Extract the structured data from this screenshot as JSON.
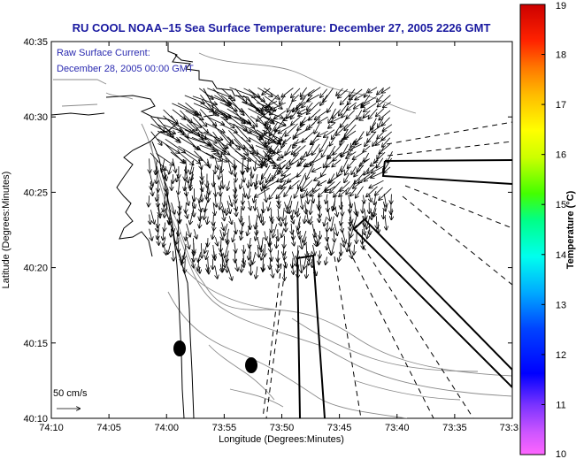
{
  "map": {
    "title": "RU COOL   NOAA–15  Sea Surface Temperature:  December 27, 2005 2226 GMT",
    "annotation_line1": "Raw Surface Current:",
    "annotation_line2": "December 28, 2005 00:00 GMT",
    "scale_label": "50 cm/s",
    "xlabel": "Longitude (Degrees:Minutes)",
    "ylabel": "Latitude (Degrees:Minutes)",
    "x_ticks": [
      "74:10",
      "74:05",
      "74:00",
      "73:55",
      "73:50",
      "73:45",
      "73:40",
      "73:35",
      "73:3"
    ],
    "y_ticks": [
      "40:35",
      "40:30",
      "40:25",
      "40:20",
      "40:15",
      "40:10"
    ]
  },
  "colorbar": {
    "label": "Temperature (°C)",
    "ticks": [
      "19",
      "18",
      "17",
      "16",
      "15",
      "14",
      "13",
      "12",
      "11",
      "10"
    ],
    "min": 10,
    "max": 19
  },
  "colors": {
    "title": "#1a1aa0",
    "annotation": "#2a2ab0"
  }
}
